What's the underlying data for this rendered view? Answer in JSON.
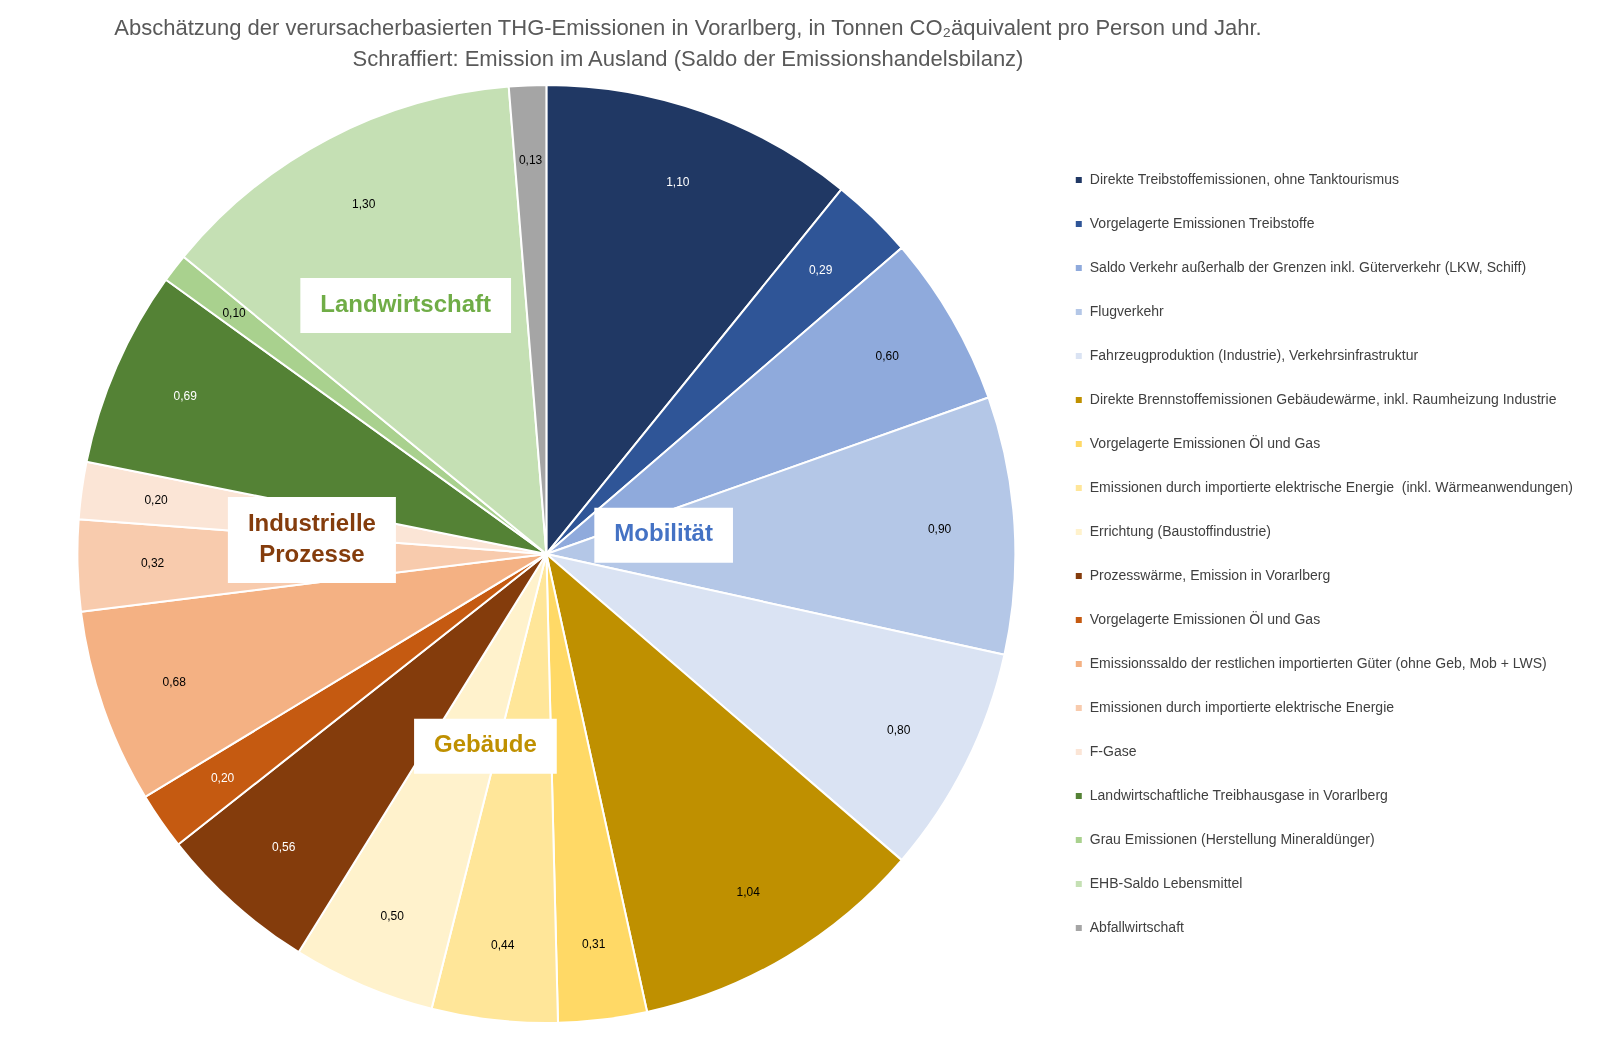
{
  "chart_data": {
    "type": "pie",
    "title": "Abschätzung der verursacherbasierten THG-Emissionen in Vorarlberg, in Tonnen CO₂äquivalent pro Person und Jahr.",
    "subtitle": "Schraffiert: Emission im Ausland (Saldo der Emissionshandelsbilanz)",
    "categories": [
      "Direkte Treibstoffemissionen, ohne Tanktourismus",
      "Vorgelagerte Emissionen Treibstoffe",
      "Saldo Verkehr außerhalb der Grenzen inkl. Güterverkehr (LKW, Schiff)",
      "Flugverkehr",
      "Fahrzeugproduktion (Industrie), Verkehrsinfrastruktur",
      "Direkte Brennstoffemissionen Gebäudewärme, inkl. Raumheizung Industrie",
      "Vorgelagerte Emissionen Öl und Gas",
      "Emissionen durch importierte elektrische Energie  (inkl. Wärmeanwendungen)",
      "Errichtung (Baustoffindustrie)",
      "Prozesswärme, Emission in Vorarlberg",
      "Vorgelagerte Emissionen Öl und Gas",
      "Emissionssaldo der restlichen importierten Güter (ohne Geb, Mob + LWS)",
      "Emissionen durch importierte elektrische Energie",
      "F-Gase",
      "Landwirtschaftliche Treibhausgase in Vorarlberg",
      "Grau Emissionen (Herstellung Mineraldünger)",
      "EHB-Saldo Lebensmittel",
      "Abfallwirtschaft"
    ],
    "values": [
      1.1,
      0.29,
      0.6,
      0.9,
      0.8,
      1.04,
      0.31,
      0.44,
      0.5,
      0.56,
      0.2,
      0.68,
      0.32,
      0.2,
      0.69,
      0.1,
      1.3,
      0.13
    ],
    "value_labels": [
      "1,10",
      "0,29",
      "0,60",
      "0,90",
      "0,80",
      "1,04",
      "0,31",
      "0,44",
      "0,50",
      "0,56",
      "0,20",
      "0,68",
      "0,32",
      "0,20",
      "0,69",
      "0,10",
      "1,30",
      "0,13"
    ],
    "colors": [
      "#203864",
      "#2f5597",
      "#8faadc",
      "#b4c7e7",
      "#dae3f3",
      "#bf9000",
      "#ffd966",
      "#ffe699",
      "#fff2cc",
      "#843c0c",
      "#c55a11",
      "#f4b183",
      "#f8cbad",
      "#fbe5d6",
      "#548235",
      "#a9d18e",
      "#c5e0b4",
      "#a5a5a5"
    ],
    "annotations": [
      "Mobilität",
      "Gebäude",
      "Industrielle Prozesse",
      "Landwirtschaft"
    ],
    "legend": "right"
  }
}
